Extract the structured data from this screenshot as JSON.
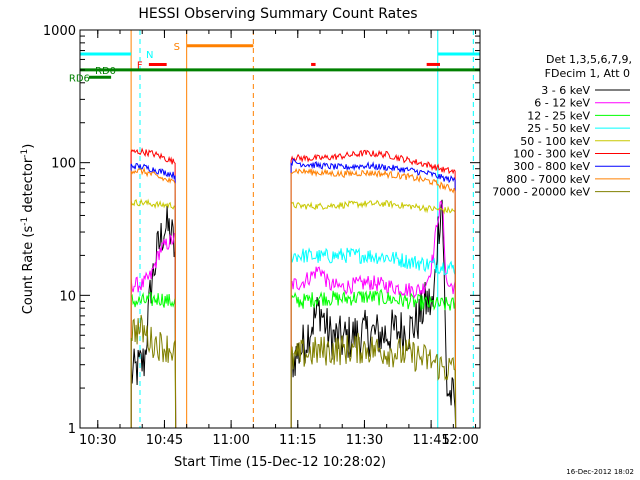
{
  "chart_data": {
    "type": "line",
    "title": "HESSI Observing Summary Count Rates",
    "xlabel": "Start Time (15-Dec-12 10:28:02)",
    "ylabel_main": "Count Rate (s",
    "ylabel_sup1": "-1",
    "ylabel_mid": " detector",
    "ylabel_sup2": "-1",
    "ylabel_end": ")",
    "yscale": "log",
    "ylim": [
      1,
      1000
    ],
    "xlim_minutes": [
      26,
      116
    ],
    "x_ticks": [
      {
        "minute": 30,
        "label": "10:30"
      },
      {
        "minute": 45,
        "label": "10:45"
      },
      {
        "minute": 60,
        "label": "11:00"
      },
      {
        "minute": 75,
        "label": "11:15"
      },
      {
        "minute": 90,
        "label": "11:30"
      },
      {
        "minute": 105,
        "label": "11:45"
      },
      {
        "minute": 120,
        "label": "12:00"
      }
    ],
    "y_ticks": [
      {
        "value": 1,
        "label": "1"
      },
      {
        "value": 10,
        "label": "10"
      },
      {
        "value": 100,
        "label": "100"
      },
      {
        "value": 1000,
        "label": "1000"
      }
    ],
    "legend_header": [
      "Det 1,3,5,6,7,9,",
      "FDecim 1, Att 0"
    ],
    "legend_position": "right",
    "series": [
      {
        "name": "3 - 6 keV",
        "color": "#000000",
        "segments": [
          {
            "x": [
              37.5,
              39,
              40.5,
              42,
              43.5,
              45,
              46.5,
              47.5
            ],
            "y": [
              2.5,
              2.8,
              3.2,
              12,
              22,
              33,
              30,
              20
            ]
          },
          {
            "x": [
              73.5,
              76,
              78,
              80,
              82,
              85,
              88,
              91,
              94,
              97,
              100,
              102,
              104,
              105.5,
              106.5,
              107.5,
              108.5,
              110.5
            ],
            "y": [
              3.2,
              4.0,
              6.0,
              8.0,
              5.0,
              4.6,
              5.0,
              5.2,
              5.0,
              5.4,
              5.4,
              6.5,
              9,
              8,
              30,
              55,
              2,
              1.5
            ]
          }
        ]
      },
      {
        "name": "6 - 12 keV",
        "color": "#ff00ff",
        "segments": [
          {
            "x": [
              37.5,
              40,
              42,
              44,
              46,
              47.5
            ],
            "y": [
              12,
              12,
              14,
              22,
              25,
              27
            ]
          },
          {
            "x": [
              73.5,
              76,
              78,
              80,
              82,
              85,
              88,
              91,
              94,
              97,
              100,
              103,
              104.5,
              105.5,
              106.5,
              107.5,
              108.5,
              110.5
            ],
            "y": [
              12,
              12.5,
              14,
              16,
              12,
              11.5,
              12,
              12.5,
              12,
              11.5,
              11,
              11,
              14,
              20,
              40,
              50,
              12,
              11.5
            ]
          }
        ]
      },
      {
        "name": "12 - 25 keV",
        "color": "#00ff00",
        "segments": [
          {
            "x": [
              37.5,
              40,
              42,
              44,
              46,
              47.5
            ],
            "y": [
              9,
              9,
              9.2,
              9.5,
              9,
              9
            ]
          },
          {
            "x": [
              73.5,
              76,
              80,
              85,
              90,
              95,
              100,
              105,
              108,
              110.5
            ],
            "y": [
              9.3,
              9.0,
              9.6,
              9.4,
              9.8,
              9.5,
              9.0,
              8.6,
              8.5,
              8.5
            ]
          }
        ]
      },
      {
        "name": "25 - 50 keV",
        "color": "#00ffff",
        "segments": [
          {
            "x": [
              73.5,
              76,
              80,
              85,
              90,
              95,
              100,
              105,
              108,
              110.5
            ],
            "y": [
              20,
              20,
              19.5,
              20,
              20,
              19.5,
              18,
              17,
              16.5,
              16
            ]
          }
        ]
      },
      {
        "name": "50 - 100 keV",
        "color": "#c8c800",
        "segments": [
          {
            "x": [
              37.5,
              40,
              42,
              44,
              46,
              47.5
            ],
            "y": [
              50,
              50,
              49,
              48,
              48,
              47
            ]
          },
          {
            "x": [
              73.5,
              76,
              80,
              85,
              90,
              95,
              100,
              105,
              108,
              110.5
            ],
            "y": [
              48,
              47,
              47,
              48,
              49,
              49,
              47,
              45,
              44,
              43
            ]
          }
        ]
      },
      {
        "name": "100 - 300 keV",
        "color": "#ff0000",
        "segments": [
          {
            "x": [
              37.5,
              40,
              42,
              44,
              46,
              47.5
            ],
            "y": [
              120,
              121,
              118,
              112,
              105,
              100
            ]
          },
          {
            "x": [
              73.5,
              76,
              80,
              85,
              90,
              95,
              100,
              105,
              108,
              110.5
            ],
            "y": [
              110,
              108,
              108,
              112,
              118,
              115,
              104,
              95,
              88,
              85
            ]
          }
        ]
      },
      {
        "name": "300 - 800 keV",
        "color": "#0000ff",
        "segments": [
          {
            "x": [
              37.5,
              40,
              42,
              44,
              46,
              47.5
            ],
            "y": [
              95,
              93,
              90,
              86,
              83,
              80
            ]
          },
          {
            "x": [
              73.5,
              76,
              80,
              85,
              90,
              95,
              100,
              105,
              108,
              110.5
            ],
            "y": [
              102,
              98,
              95,
              92,
              95,
              92,
              88,
              82,
              76,
              74
            ]
          }
        ]
      },
      {
        "name": "800 - 7000 keV",
        "color": "#ff8000",
        "segments": [
          {
            "x": [
              37.5,
              40,
              42,
              44,
              46,
              47.5
            ],
            "y": [
              88,
              86,
              82,
              77,
              73,
              70
            ]
          },
          {
            "x": [
              73.5,
              76,
              80,
              85,
              90,
              95,
              100,
              105,
              108,
              110.5
            ],
            "y": [
              88,
              86,
              84,
              82,
              84,
              82,
              78,
              72,
              66,
              62
            ]
          }
        ]
      },
      {
        "name": "7000 - 20000 keV",
        "color": "#808000",
        "segments": [
          {
            "x": [
              37.5,
              40,
              42,
              44,
              46,
              47.5
            ],
            "y": [
              5.5,
              5.5,
              4.5,
              4.2,
              4.0,
              3.8
            ]
          },
          {
            "x": [
              73.5,
              76,
              80,
              85,
              90,
              95,
              100,
              105,
              108,
              110.5
            ],
            "y": [
              3.2,
              3.6,
              3.8,
              3.9,
              4.0,
              3.8,
              3.6,
              3.2,
              2.8,
              2.8
            ]
          }
        ]
      }
    ],
    "flag_lines": [
      {
        "label": "RD0",
        "color": "#008000",
        "x": [
          26,
          116
        ],
        "y": 500
      },
      {
        "label": "RD6",
        "color": "#008000",
        "x": [
          28,
          33
        ],
        "y": 440
      },
      {
        "label": "N",
        "color": "#00ffff",
        "x": [
          26,
          37.5
        ],
        "y": 660
      },
      {
        "label": "",
        "color": "#00ffff",
        "x": [
          106.5,
          116
        ],
        "y": 660
      },
      {
        "label": "F",
        "color": "#ff0000",
        "x": [
          41.5,
          45.5
        ],
        "y": 550
      },
      {
        "label": "",
        "color": "#ff0000",
        "x": [
          78,
          79
        ],
        "y": 550
      },
      {
        "label": "",
        "color": "#ff0000",
        "x": [
          104,
          107
        ],
        "y": 550
      },
      {
        "label": "S",
        "color": "#ff8000",
        "x": [
          50,
          65
        ],
        "y": 760
      }
    ],
    "vertical_lines": [
      {
        "x": 26,
        "color": "#00ffff",
        "style": "solid"
      },
      {
        "x": 39.5,
        "color": "#00ffff",
        "style": "dashed"
      },
      {
        "x": 106.5,
        "color": "#00ffff",
        "style": "solid"
      },
      {
        "x": 114.5,
        "color": "#00ffff",
        "style": "dashed"
      },
      {
        "x": 50,
        "color": "#ff8000",
        "style": "solid"
      },
      {
        "x": 65,
        "color": "#ff8000",
        "style": "dashed"
      },
      {
        "x": 37.5,
        "color": "#ff8000",
        "style": "solid"
      }
    ],
    "grid": false
  },
  "footer_timestamp": "16-Dec-2012 18:02"
}
